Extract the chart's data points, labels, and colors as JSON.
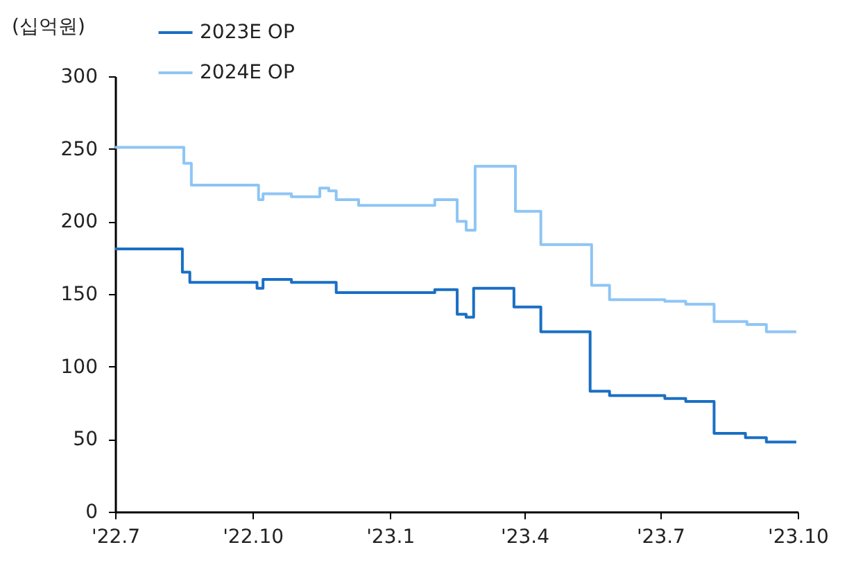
{
  "chart_data": {
    "type": "step",
    "ylabel": "(십억원)",
    "legend": "top left",
    "xlim": [
      "2022-07-01",
      "2023-10-01"
    ],
    "xticks": [
      {
        "value": "2022-07-01",
        "label": "'22.7"
      },
      {
        "value": "2022-10-01",
        "label": "'22.10"
      },
      {
        "value": "2023-01-01",
        "label": "'23.1"
      },
      {
        "value": "2023-04-01",
        "label": "'23.4"
      },
      {
        "value": "2023-07-01",
        "label": "'23.7"
      },
      {
        "value": "2023-10-01",
        "label": "'23.10"
      }
    ],
    "ylim": [
      0,
      300
    ],
    "yticks": [
      0,
      50,
      100,
      150,
      200,
      250,
      300
    ],
    "series": [
      {
        "name": "2023E OP",
        "color": "#1a6fc4",
        "x": [
          "2022-07-01",
          "2022-08-15",
          "2022-08-20",
          "2022-10-04",
          "2022-10-08",
          "2022-10-27",
          "2022-11-26",
          "2023-01-31",
          "2023-02-15",
          "2023-02-21",
          "2023-02-26",
          "2023-03-25",
          "2023-04-12",
          "2023-05-15",
          "2023-05-28",
          "2023-07-04",
          "2023-07-18",
          "2023-08-06",
          "2023-08-27",
          "2023-09-10",
          "2023-09-30"
        ],
        "values": [
          181,
          165,
          158,
          154,
          160,
          158,
          151,
          153,
          136,
          134,
          154,
          141,
          124,
          83,
          80,
          78,
          76,
          54,
          51,
          48,
          48
        ]
      },
      {
        "name": "2024E OP",
        "color": "#8ec5f5",
        "x": [
          "2022-07-01",
          "2022-08-16",
          "2022-08-21",
          "2022-10-05",
          "2022-10-08",
          "2022-10-27",
          "2022-11-15",
          "2022-11-21",
          "2022-11-26",
          "2022-12-11",
          "2023-01-31",
          "2023-02-15",
          "2023-02-21",
          "2023-02-27",
          "2023-03-26",
          "2023-04-12",
          "2023-05-16",
          "2023-05-28",
          "2023-07-04",
          "2023-07-18",
          "2023-08-06",
          "2023-08-28",
          "2023-09-10",
          "2023-09-30"
        ],
        "values": [
          251,
          240,
          225,
          215,
          219,
          217,
          223,
          221,
          215,
          211,
          215,
          200,
          194,
          238,
          207,
          184,
          156,
          146,
          145,
          143,
          131,
          129,
          124,
          124
        ]
      }
    ]
  }
}
